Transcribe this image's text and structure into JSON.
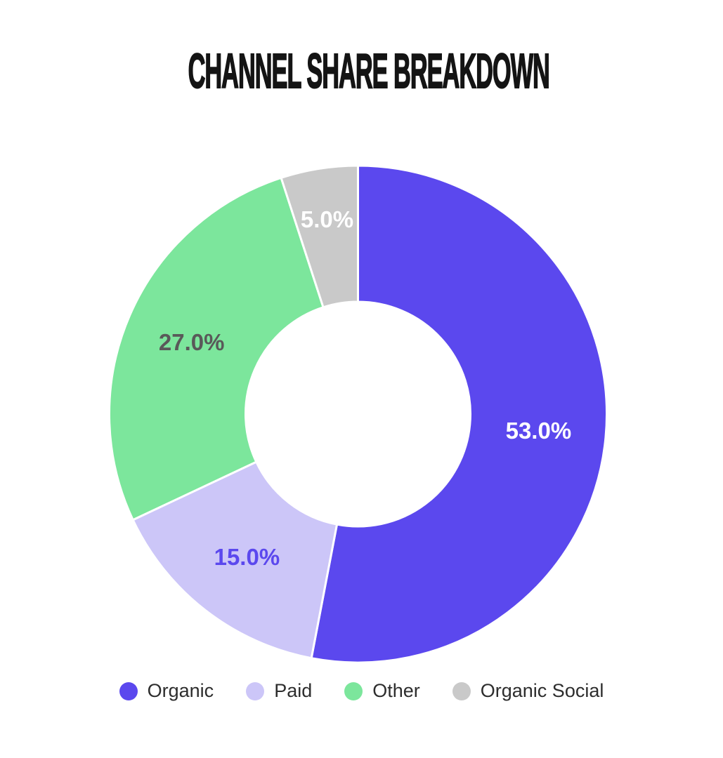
{
  "title": "CHANNEL SHARE BREAKDOWN",
  "chart_data": {
    "type": "pie",
    "subtype": "donut",
    "title": "CHANNEL SHARE BREAKDOWN",
    "categories": [
      "Organic",
      "Paid",
      "Other",
      "Organic Social"
    ],
    "values": [
      53.0,
      15.0,
      27.0,
      5.0
    ],
    "slice_labels": [
      "53.0%",
      "15.0%",
      "27.0%",
      "5.0%"
    ],
    "colors": [
      "#5B48EE",
      "#CCC6F8",
      "#7CE69C",
      "#C9C9C9"
    ],
    "slice_label_colors": [
      "#FFFFFF",
      "#5B48EE",
      "#595959",
      "#FFFFFF"
    ],
    "start_angle_deg": 0,
    "direction": "clockwise",
    "donut_hole_ratio": 0.45,
    "separator_color": "#FFFFFF",
    "legend_position": "bottom",
    "legend_text_color": "#2D2D2D",
    "title_color": "#141414",
    "background": "#FFFFFF"
  }
}
